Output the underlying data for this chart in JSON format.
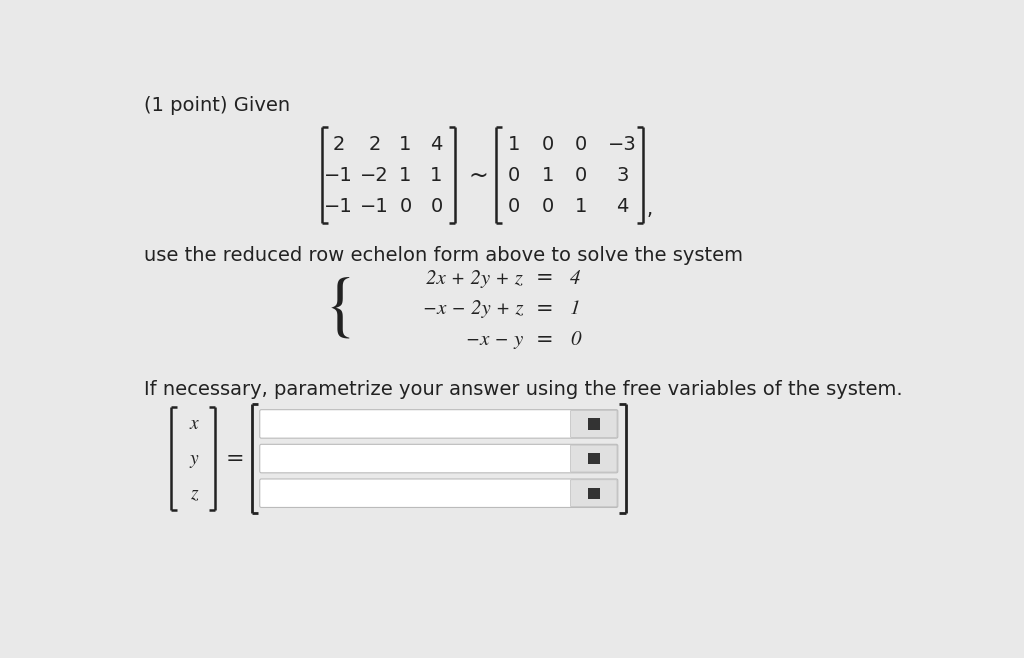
{
  "background_color": "#e9e9e9",
  "title_text": "(1 point) Given",
  "matrix1": [
    [
      "2",
      "2",
      "1",
      "4"
    ],
    [
      "−1",
      "−2",
      "1",
      "1"
    ],
    [
      "−1",
      "−1",
      "0",
      "0"
    ]
  ],
  "matrix2": [
    [
      "1",
      "0",
      "0",
      "−3"
    ],
    [
      "0",
      "1",
      "0",
      "3"
    ],
    [
      "0",
      "0",
      "1",
      "4"
    ]
  ],
  "sim_symbol": "~",
  "comma": ",",
  "use_text": "use the reduced row echelon form above to solve the system",
  "equations": [
    {
      "lhs": "2x + 2y + z",
      "rhs": "4"
    },
    {
      "lhs": "−x − 2y + z",
      "rhs": "1"
    },
    {
      "lhs": "−x − y",
      "rhs": "0"
    }
  ],
  "param_text": "If necessary, parametrize your answer using the free variables of the system.",
  "vec_labels": [
    "x",
    "y",
    "z"
  ],
  "text_color": "#222222",
  "input_box_color": "#ffffff",
  "input_box_border": "#cccccc",
  "icon_bg": "#e0e0e0",
  "icon_color": "#333333",
  "font_size": 14,
  "font_size_eq": 15,
  "matrix_font_size": 14
}
